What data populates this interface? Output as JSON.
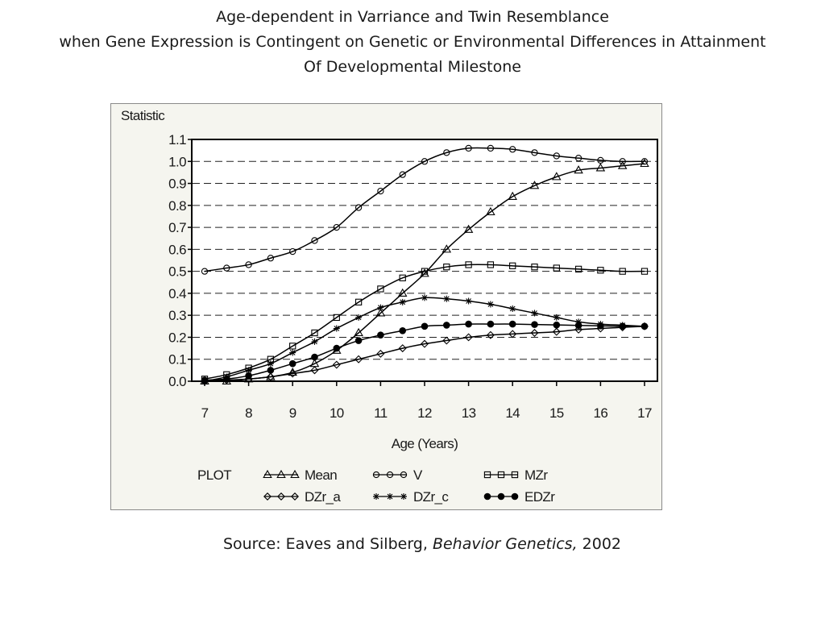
{
  "title": {
    "line1": "Age-dependent in Varriance and Twin Resemblance",
    "line2": "when Gene Expression is Contingent on Genetic or Environmental Differences in Attainment",
    "line3": "Of Developmental Milestone"
  },
  "source": {
    "prefix": "Source:  Eaves and Silberg, ",
    "journal": "Behavior Genetics,",
    "year": " 2002"
  },
  "chart_data": {
    "type": "line",
    "ylabel": "Statistic",
    "xlabel": "Age  (Years)",
    "legend_title": "PLOT",
    "legend_position": "bottom",
    "xlim": [
      7,
      17
    ],
    "ylim": [
      0.0,
      1.1
    ],
    "x_ticks": [
      7,
      8,
      9,
      10,
      11,
      12,
      13,
      14,
      15,
      16,
      17
    ],
    "y_ticks": [
      "0.0",
      "0.1",
      "0.2",
      "0.3",
      "0.4",
      "0.5",
      "0.6",
      "0.7",
      "0.8",
      "0.9",
      "1.0",
      "1.1"
    ],
    "grid": "horizontal dashed",
    "x": [
      7,
      7.5,
      8,
      8.5,
      9,
      9.5,
      10,
      10.5,
      11,
      11.5,
      12,
      12.5,
      13,
      13.5,
      14,
      14.5,
      15,
      15.5,
      16,
      16.5,
      17
    ],
    "series": [
      {
        "name": "Mean",
        "marker": "triangle",
        "values": [
          0.0,
          0.0,
          0.01,
          0.02,
          0.04,
          0.08,
          0.14,
          0.22,
          0.31,
          0.4,
          0.49,
          0.6,
          0.69,
          0.77,
          0.84,
          0.89,
          0.93,
          0.96,
          0.97,
          0.98,
          0.99
        ]
      },
      {
        "name": "V",
        "marker": "circle",
        "values": [
          0.5,
          0.515,
          0.53,
          0.56,
          0.59,
          0.64,
          0.7,
          0.79,
          0.865,
          0.94,
          1.0,
          1.04,
          1.06,
          1.06,
          1.055,
          1.04,
          1.025,
          1.015,
          1.005,
          1.0,
          1.0
        ]
      },
      {
        "name": "MZr",
        "marker": "square",
        "values": [
          0.01,
          0.03,
          0.06,
          0.1,
          0.16,
          0.22,
          0.29,
          0.36,
          0.42,
          0.47,
          0.5,
          0.52,
          0.53,
          0.53,
          0.525,
          0.52,
          0.515,
          0.51,
          0.505,
          0.5,
          0.5
        ]
      },
      {
        "name": "DZr_a",
        "marker": "diamond",
        "values": [
          0.0,
          0.005,
          0.01,
          0.02,
          0.035,
          0.05,
          0.075,
          0.1,
          0.125,
          0.15,
          0.17,
          0.185,
          0.2,
          0.21,
          0.215,
          0.22,
          0.225,
          0.235,
          0.24,
          0.245,
          0.25
        ]
      },
      {
        "name": "DZr_c",
        "marker": "star",
        "values": [
          0.0,
          0.02,
          0.05,
          0.08,
          0.13,
          0.18,
          0.24,
          0.29,
          0.335,
          0.36,
          0.38,
          0.375,
          0.365,
          0.35,
          0.33,
          0.31,
          0.29,
          0.27,
          0.26,
          0.255,
          0.25
        ]
      },
      {
        "name": "EDZr",
        "marker": "filled-circle",
        "values": [
          0.005,
          0.01,
          0.025,
          0.05,
          0.08,
          0.11,
          0.15,
          0.185,
          0.21,
          0.23,
          0.25,
          0.255,
          0.26,
          0.26,
          0.26,
          0.258,
          0.256,
          0.254,
          0.252,
          0.25,
          0.25
        ]
      }
    ]
  }
}
